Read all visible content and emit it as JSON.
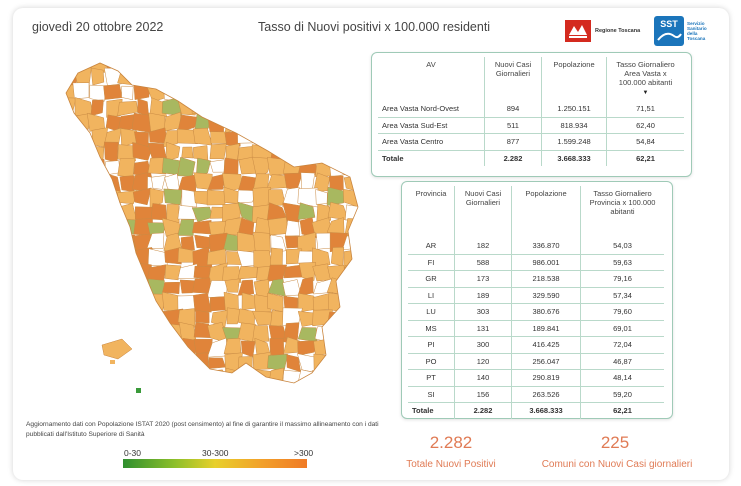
{
  "header": {
    "date": "giovedì 20 ottobre 2022",
    "title": "Tasso di Nuovi positivi x 100.000 residenti",
    "logo_regione": "Regione Toscana",
    "logo_sst_abbr": "SST",
    "logo_sst_text": [
      "Servizio",
      "Sanitario",
      "della",
      "Toscana"
    ]
  },
  "av_table": {
    "headers": [
      "AV",
      "Nuovi Casi Giornalieri",
      "Popolazione",
      "Tasso Giornaliero Area Vasta x 100.000 abitanti"
    ],
    "rows": [
      [
        "Area Vasta Nord-Ovest",
        "894",
        "1.250.151",
        "71,51"
      ],
      [
        "Area Vasta Sud-Est",
        "511",
        "818.934",
        "62,40"
      ],
      [
        "Area Vasta Centro",
        "877",
        "1.599.248",
        "54,84"
      ]
    ],
    "total": [
      "Totale",
      "2.282",
      "3.668.333",
      "62,21"
    ]
  },
  "prov_table": {
    "headers": [
      "Provincia",
      "Nuovi Casi Giornalieri",
      "Popolazione",
      "Tasso Giornaliero Provincia x 100.000 abitanti"
    ],
    "rows": [
      [
        "AR",
        "182",
        "336.870",
        "54,03"
      ],
      [
        "FI",
        "588",
        "986.001",
        "59,63"
      ],
      [
        "GR",
        "173",
        "218.538",
        "79,16"
      ],
      [
        "LI",
        "189",
        "329.590",
        "57,34"
      ],
      [
        "LU",
        "303",
        "380.676",
        "79,60"
      ],
      [
        "MS",
        "131",
        "189.841",
        "69,01"
      ],
      [
        "PI",
        "300",
        "416.425",
        "72,04"
      ],
      [
        "PO",
        "120",
        "256.047",
        "46,87"
      ],
      [
        "PT",
        "140",
        "290.819",
        "48,14"
      ],
      [
        "SI",
        "156",
        "263.526",
        "59,20"
      ]
    ],
    "total": [
      "Totale",
      "2.282",
      "3.668.333",
      "62,21"
    ]
  },
  "footnote": "Aggiornamento dati con Popolazione ISTAT 2020 (post censimento) al fine di garantire il massimo allineamento con i dati pubblicati dall'Istituto Superiore di Sanità",
  "legend": {
    "low": "0-30",
    "mid": "30-300",
    "high": ">300"
  },
  "kpis": {
    "total_positives_value": "2.282",
    "total_positives_label": "Totale Nuovi Positivi",
    "municipalities_value": "225",
    "municipalities_label": "Comuni con Nuovi Casi giornalieri"
  },
  "colors": {
    "accent": "#e07b55",
    "table_border": "#9fcab7",
    "map_high": "#e0843a",
    "map_mid": "#f1b45f",
    "map_low": "#a8b860",
    "map_none": "#ffffff"
  }
}
